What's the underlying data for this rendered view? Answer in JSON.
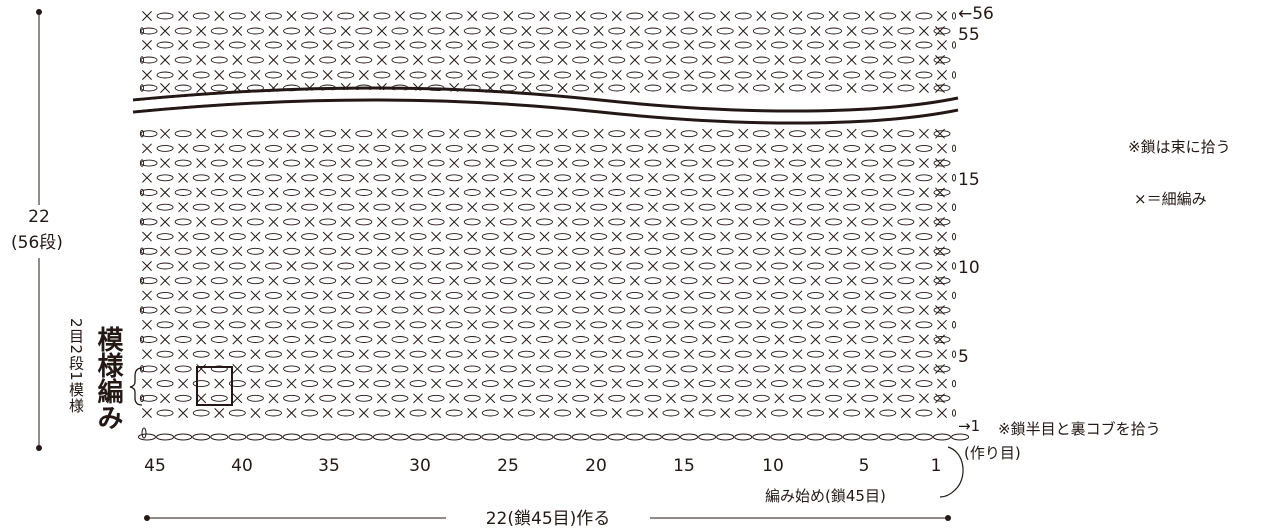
{
  "diagram": {
    "pattern_title": "模様編み",
    "pattern_repeat": "2目2段1模様",
    "height_dim": {
      "value": "22",
      "rows": "(56段)"
    },
    "width_dim": "22(鎖45目)作る",
    "start_label": "編み始め(鎖45目)",
    "foundation_label": "(作り目)",
    "row1_note": "※鎖半目と裏コブを拾う",
    "note_chain": "※鎖は束に拾う",
    "legend_sc": "×＝細編み",
    "row_labels": [
      {
        "row": 56,
        "text": "←56"
      },
      {
        "row": 55,
        "text": "55"
      },
      {
        "row": 15,
        "text": "15"
      },
      {
        "row": 10,
        "text": "10"
      },
      {
        "row": 5,
        "text": "5"
      },
      {
        "row": 1,
        "text": "→1"
      }
    ],
    "stitch_labels": [
      "45",
      "40",
      "35",
      "30",
      "25",
      "20",
      "15",
      "10",
      "5",
      "1"
    ],
    "total_stitches": 45,
    "total_rows": 56,
    "colors": {
      "ink": "#231815"
    }
  }
}
